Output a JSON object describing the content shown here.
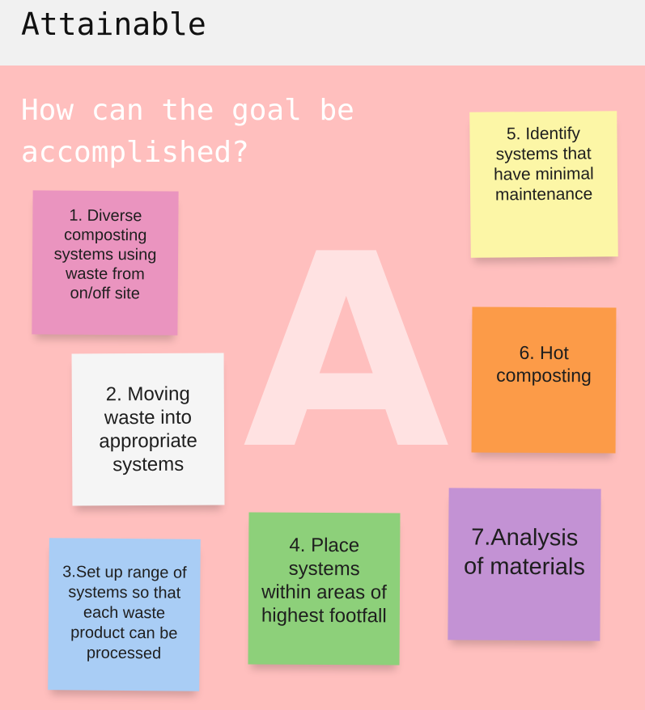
{
  "header": {
    "title": "Attainable"
  },
  "board": {
    "question": "How can the goal be accomplished?",
    "big_letter": "A",
    "notes": [
      {
        "text": "1. Diverse composting systems using waste from on/off site",
        "color": "#ea94bf"
      },
      {
        "text": "2. Moving waste into appropriate systems",
        "color": "#f5f5f5"
      },
      {
        "text": "3.Set up range of systems so that each waste product can be processed",
        "color": "#a9cdf5"
      },
      {
        "text": "4. Place systems within areas of highest footfall",
        "color": "#8dd07a"
      },
      {
        "text": "5. Identify systems that have minimal maintenance",
        "color": "#fcf6a6"
      },
      {
        "text": "6. Hot composting",
        "color": "#fc9b48"
      },
      {
        "text": "7.Analysis of materials",
        "color": "#c392d4"
      }
    ]
  },
  "colors": {
    "board_background": "#ffbfbe",
    "header_background": "#f1f1f1"
  }
}
